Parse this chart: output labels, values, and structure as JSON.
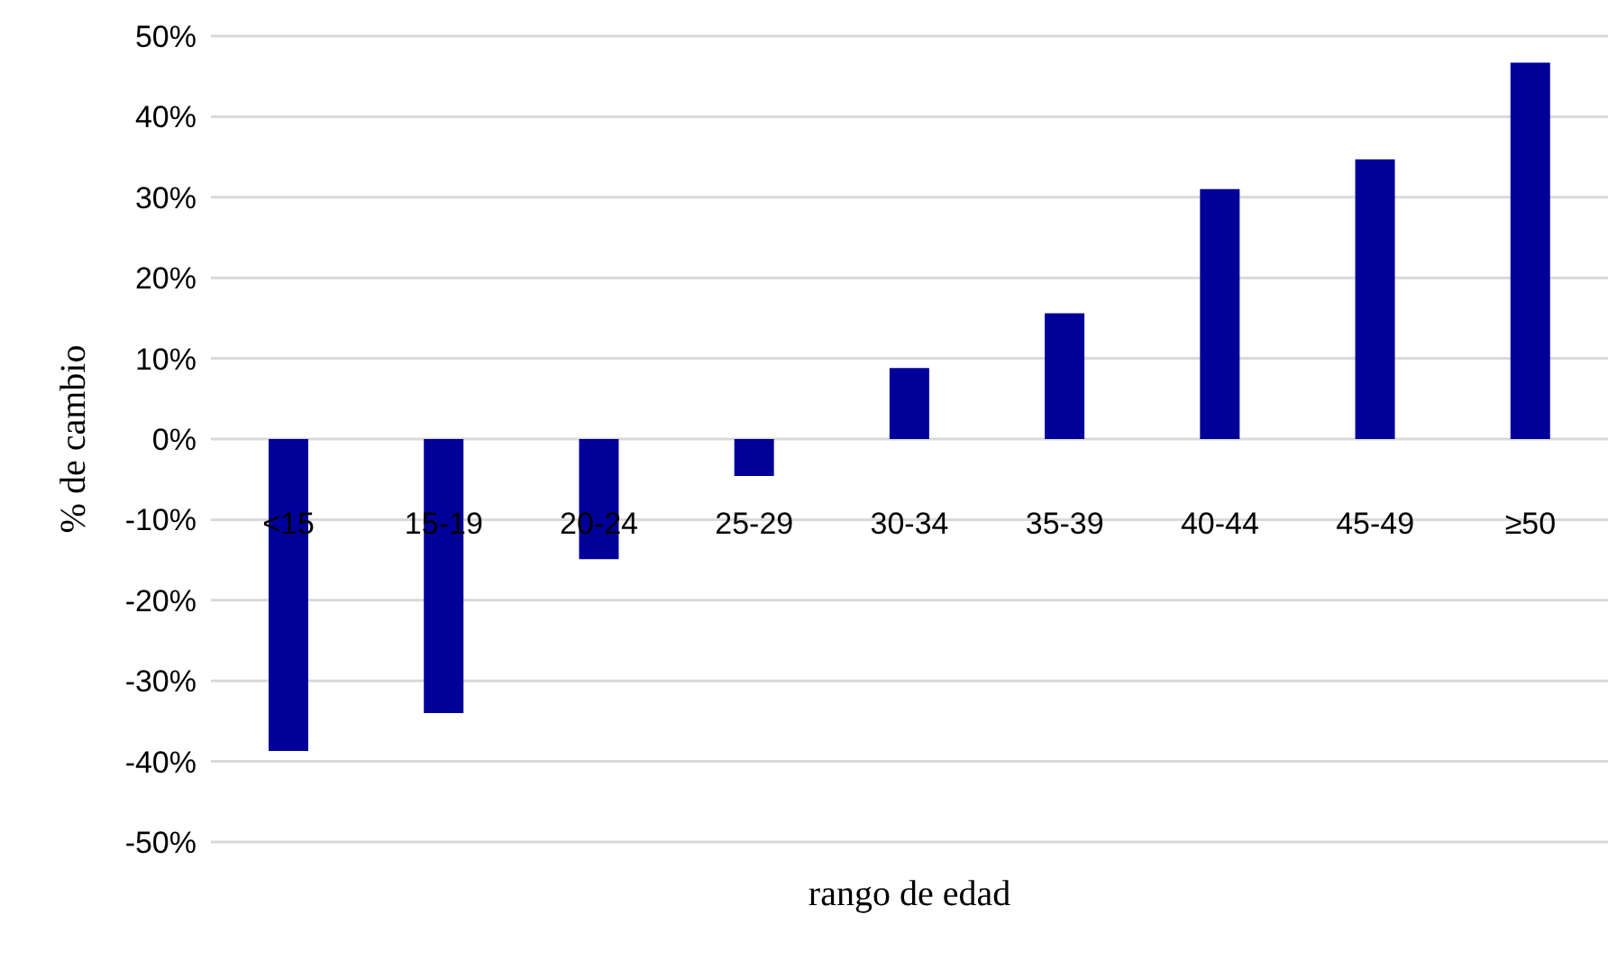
{
  "chart_data": {
    "type": "bar",
    "xlabel": "rango de edad",
    "ylabel": "% de cambio",
    "categories": [
      "<15",
      "15-19",
      "20-24",
      "25-29",
      "30-34",
      "35-39",
      "40-44",
      "45-49",
      "≥50"
    ],
    "values": [
      -38.7,
      -34,
      -14.9,
      -4.6,
      8.8,
      15.6,
      31,
      34.7,
      46.7
    ],
    "color": "#000099",
    "ylim": [
      -50,
      50
    ],
    "yticks": [
      {
        "value": -50,
        "label": "-50%"
      },
      {
        "value": -40,
        "label": "-40%"
      },
      {
        "value": -30,
        "label": "-30%"
      },
      {
        "value": -20,
        "label": "-20%"
      },
      {
        "value": -10,
        "label": "-10%"
      },
      {
        "value": 0,
        "label": "0%"
      },
      {
        "value": 10,
        "label": "10%"
      },
      {
        "value": 20,
        "label": "20%"
      },
      {
        "value": 30,
        "label": "30%"
      },
      {
        "value": 40,
        "label": "40%"
      },
      {
        "value": 50,
        "label": "50%"
      }
    ],
    "grid": "y"
  }
}
